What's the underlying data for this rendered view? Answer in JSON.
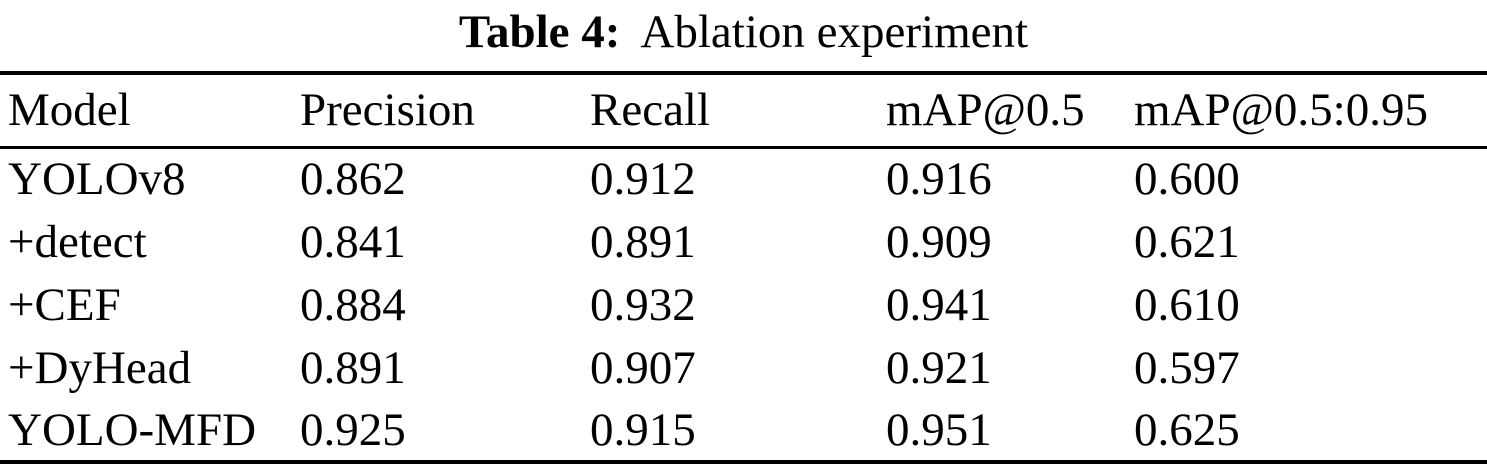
{
  "caption": {
    "label": "Table 4:",
    "text": "Ablation experiment"
  },
  "table": {
    "columns": [
      "Model",
      "Precision",
      "Recall",
      "mAP@0.5",
      "mAP@0.5:0.95"
    ],
    "rows": [
      [
        "YOLOv8",
        "0.862",
        "0.912",
        "0.916",
        "0.600"
      ],
      [
        "+detect",
        "0.841",
        "0.891",
        "0.909",
        "0.621"
      ],
      [
        "+CEF",
        "0.884",
        "0.932",
        "0.941",
        "0.610"
      ],
      [
        "+DyHead",
        "0.891",
        "0.907",
        "0.921",
        "0.597"
      ],
      [
        "YOLO-MFD",
        "0.925",
        "0.915",
        "0.951",
        "0.625"
      ]
    ]
  },
  "chart_data": {
    "type": "table",
    "title": "Table 4: Ablation experiment",
    "categories": [
      "YOLOv8",
      "+detect",
      "+CEF",
      "+DyHead",
      "YOLO-MFD"
    ],
    "series": [
      {
        "name": "Precision",
        "values": [
          0.862,
          0.841,
          0.884,
          0.891,
          0.925
        ]
      },
      {
        "name": "Recall",
        "values": [
          0.912,
          0.891,
          0.932,
          0.907,
          0.915
        ]
      },
      {
        "name": "mAP@0.5",
        "values": [
          0.916,
          0.909,
          0.941,
          0.921,
          0.951
        ]
      },
      {
        "name": "mAP@0.5:0.95",
        "values": [
          0.6,
          0.621,
          0.61,
          0.597,
          0.625
        ]
      }
    ]
  },
  "colors": {
    "text": "#000000",
    "background": "#ffffff",
    "rule": "#000000"
  }
}
